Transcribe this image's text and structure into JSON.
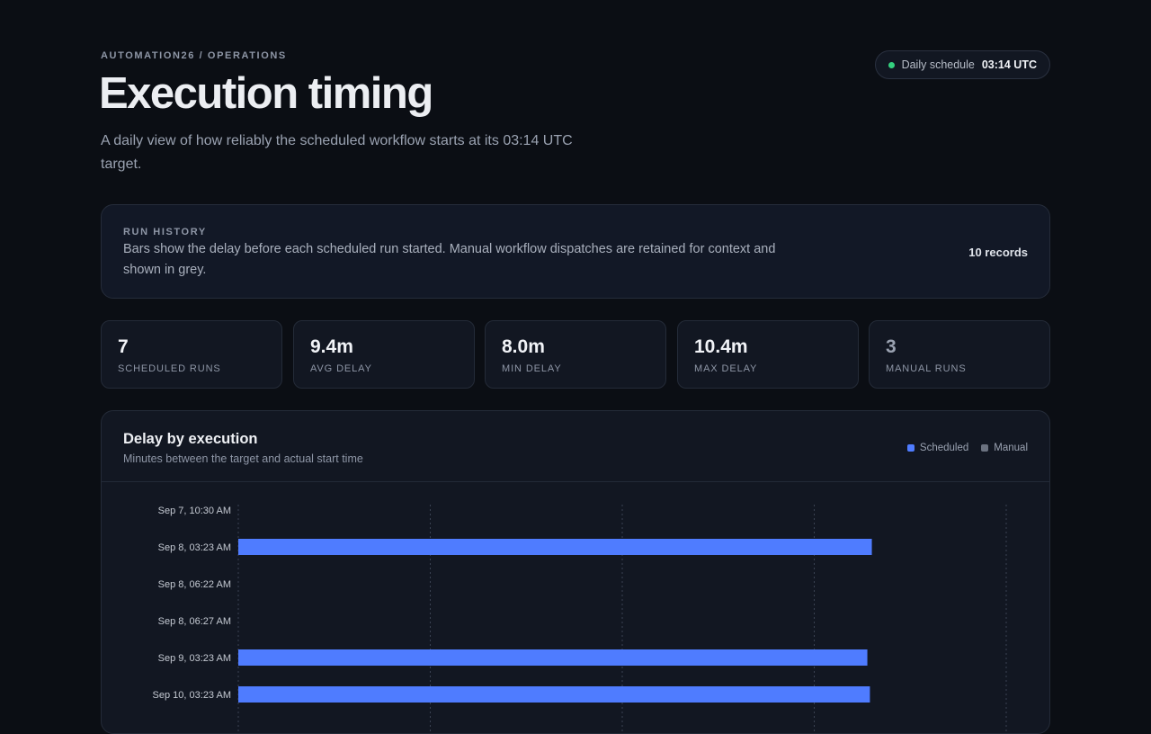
{
  "header": {
    "breadcrumb": "AUTOMATION26 / OPERATIONS",
    "title": "Execution timing",
    "subtitle": "A daily view of how reliably the scheduled workflow starts at its 03:14 UTC target."
  },
  "schedule_pill": {
    "label": "Daily schedule",
    "value": "03:14 UTC",
    "status_color": "#34d17f"
  },
  "run_history": {
    "label": "RUN HISTORY",
    "description": "Bars show the delay before each scheduled run started. Manual workflow dispatches are retained for context and shown in grey.",
    "count": "10 records"
  },
  "stats": [
    {
      "value": "7",
      "caption": "SCHEDULED RUNS"
    },
    {
      "value": "9.4m",
      "caption": "AVG DELAY"
    },
    {
      "value": "8.0m",
      "caption": "MIN DELAY"
    },
    {
      "value": "10.4m",
      "caption": "MAX DELAY"
    },
    {
      "value": "3",
      "caption": "MANUAL RUNS",
      "muted": true
    }
  ],
  "chart_card": {
    "title": "Delay by execution",
    "subtitle": "Minutes between the target and actual start time",
    "legend": [
      {
        "label": "Scheduled",
        "color": "#4f7cff"
      },
      {
        "label": "Manual",
        "color": "#6b7280"
      }
    ]
  },
  "chart_data": {
    "type": "bar",
    "orientation": "horizontal",
    "categories": [
      "Sep 7, 10:30 AM",
      "Sep 8, 03:23 AM",
      "Sep 8, 06:22 AM",
      "Sep 8, 06:27 AM",
      "Sep 9, 03:23 AM",
      "Sep 10, 03:23 AM"
    ],
    "run_type": [
      "manual",
      "scheduled",
      "manual",
      "manual",
      "scheduled",
      "scheduled"
    ],
    "values": [
      0,
      9.9,
      0,
      0,
      9.83,
      9.87
    ],
    "xlim": [
      0,
      12
    ],
    "grid_values": [
      0,
      3,
      6,
      9,
      12
    ],
    "grid": true,
    "colors": {
      "scheduled": "#4f7cff",
      "manual": "#6b7280",
      "grid": "#3a4252"
    }
  }
}
